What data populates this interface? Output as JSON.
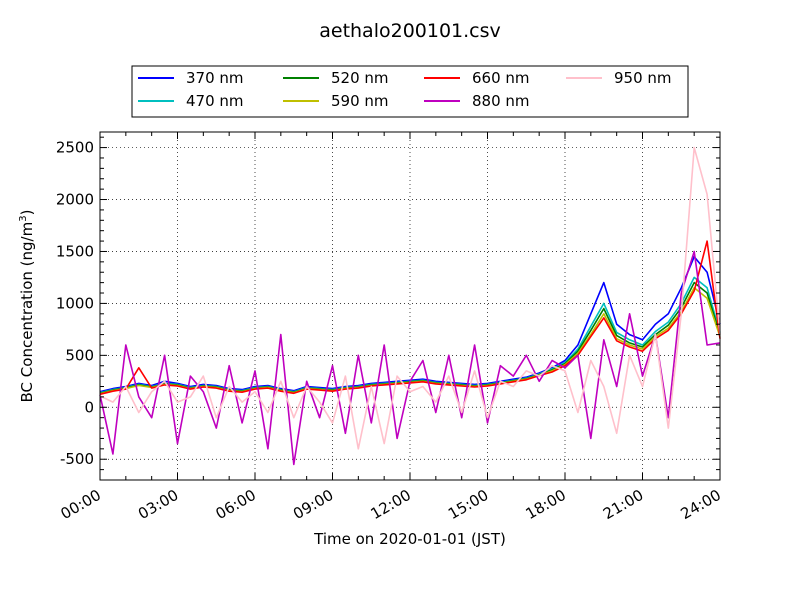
{
  "chart_data": {
    "type": "line",
    "title": "aethalo200101.csv",
    "xlabel": "Time on 2020-01-01 (JST)",
    "ylabel": "BC Concentration (ng/m",
    "ylabel_sup": "3",
    "ylabel_close": ")",
    "x_ticks": [
      "00:00",
      "03:00",
      "06:00",
      "09:00",
      "12:00",
      "15:00",
      "18:00",
      "21:00",
      "24:00"
    ],
    "y_ticks": [
      "-500",
      "0",
      "500",
      "1000",
      "1500",
      "2000",
      "2500"
    ],
    "xlim": [
      0,
      24
    ],
    "ylim": [
      -700,
      2650
    ],
    "grid": true,
    "legend_position": "top-center",
    "series": [
      {
        "name": "370 nm",
        "color": "#0000ff",
        "x": [
          0,
          0.5,
          1,
          1.5,
          2,
          2.5,
          3,
          3.5,
          4,
          4.5,
          5,
          5.5,
          6,
          6.5,
          7,
          7.5,
          8,
          8.5,
          9,
          9.5,
          10,
          10.5,
          11,
          11.5,
          12,
          12.5,
          13,
          13.5,
          14,
          14.5,
          15,
          15.5,
          16,
          16.5,
          17,
          17.5,
          18,
          18.5,
          19,
          19.5,
          20,
          20.5,
          21,
          21.5,
          22,
          22.5,
          23,
          23.5,
          24
        ],
        "y": [
          150,
          180,
          200,
          230,
          210,
          250,
          230,
          200,
          220,
          210,
          180,
          170,
          200,
          210,
          180,
          160,
          200,
          190,
          180,
          200,
          210,
          230,
          240,
          250,
          260,
          270,
          250,
          240,
          230,
          220,
          230,
          250,
          270,
          290,
          330,
          380,
          450,
          600,
          900,
          1200,
          800,
          700,
          650,
          800,
          900,
          1150,
          1450,
          1300,
          800
        ]
      },
      {
        "name": "470 nm",
        "color": "#00bfbf",
        "x": [
          0,
          0.5,
          1,
          1.5,
          2,
          2.5,
          3,
          3.5,
          4,
          4.5,
          5,
          5.5,
          6,
          6.5,
          7,
          7.5,
          8,
          8.5,
          9,
          9.5,
          10,
          10.5,
          11,
          11.5,
          12,
          12.5,
          13,
          13.5,
          14,
          14.5,
          15,
          15.5,
          16,
          16.5,
          17,
          17.5,
          18,
          18.5,
          19,
          19.5,
          20,
          20.5,
          21,
          21.5,
          22,
          22.5,
          23,
          23.5,
          24
        ],
        "y": [
          140,
          170,
          190,
          220,
          200,
          230,
          220,
          190,
          210,
          200,
          170,
          160,
          190,
          200,
          170,
          150,
          190,
          180,
          170,
          190,
          200,
          220,
          230,
          240,
          250,
          260,
          240,
          230,
          220,
          210,
          220,
          240,
          260,
          280,
          320,
          370,
          430,
          560,
          780,
          1000,
          720,
          650,
          600,
          730,
          820,
          1000,
          1250,
          1150,
          720
        ]
      },
      {
        "name": "520 nm",
        "color": "#008000",
        "x": [
          0,
          0.5,
          1,
          1.5,
          2,
          2.5,
          3,
          3.5,
          4,
          4.5,
          5,
          5.5,
          6,
          6.5,
          7,
          7.5,
          8,
          8.5,
          9,
          9.5,
          10,
          10.5,
          11,
          11.5,
          12,
          12.5,
          13,
          13.5,
          14,
          14.5,
          15,
          15.5,
          16,
          16.5,
          17,
          17.5,
          18,
          18.5,
          19,
          19.5,
          20,
          20.5,
          21,
          21.5,
          22,
          22.5,
          23,
          23.5,
          24
        ],
        "y": [
          135,
          165,
          185,
          215,
          195,
          225,
          215,
          185,
          205,
          195,
          165,
          155,
          185,
          195,
          165,
          145,
          185,
          175,
          165,
          185,
          195,
          215,
          225,
          235,
          245,
          255,
          235,
          225,
          215,
          205,
          215,
          235,
          255,
          275,
          315,
          360,
          420,
          540,
          740,
          950,
          690,
          620,
          580,
          700,
          790,
          960,
          1200,
          1100,
          700
        ]
      },
      {
        "name": "590 nm",
        "color": "#bfbf00",
        "x": [
          0,
          0.5,
          1,
          1.5,
          2,
          2.5,
          3,
          3.5,
          4,
          4.5,
          5,
          5.5,
          6,
          6.5,
          7,
          7.5,
          8,
          8.5,
          9,
          9.5,
          10,
          10.5,
          11,
          11.5,
          12,
          12.5,
          13,
          13.5,
          14,
          14.5,
          15,
          15.5,
          16,
          16.5,
          17,
          17.5,
          18,
          18.5,
          19,
          19.5,
          20,
          20.5,
          21,
          21.5,
          22,
          22.5,
          23,
          23.5,
          24
        ],
        "y": [
          130,
          160,
          180,
          210,
          190,
          220,
          210,
          180,
          200,
          190,
          160,
          150,
          180,
          190,
          160,
          140,
          180,
          170,
          160,
          180,
          190,
          210,
          220,
          230,
          240,
          250,
          230,
          220,
          210,
          200,
          210,
          230,
          250,
          270,
          310,
          350,
          410,
          520,
          700,
          900,
          660,
          600,
          560,
          680,
          760,
          920,
          1150,
          1050,
          680
        ]
      },
      {
        "name": "660 nm",
        "color": "#ff0000",
        "x": [
          0,
          0.5,
          1,
          1.5,
          2,
          2.5,
          3,
          3.5,
          4,
          4.5,
          5,
          5.5,
          6,
          6.5,
          7,
          7.5,
          8,
          8.5,
          9,
          9.5,
          10,
          10.5,
          11,
          11.5,
          12,
          12.5,
          13,
          13.5,
          14,
          14.5,
          15,
          15.5,
          16,
          16.5,
          17,
          17.5,
          18,
          18.5,
          19,
          19.5,
          20,
          20.5,
          21,
          21.5,
          22,
          22.5,
          23,
          23.5,
          24
        ],
        "y": [
          125,
          155,
          175,
          380,
          185,
          215,
          205,
          175,
          195,
          185,
          155,
          145,
          175,
          185,
          155,
          135,
          175,
          165,
          155,
          175,
          185,
          205,
          215,
          225,
          235,
          245,
          225,
          215,
          205,
          195,
          205,
          225,
          245,
          265,
          305,
          340,
          400,
          500,
          680,
          860,
          640,
          580,
          540,
          660,
          740,
          900,
          1120,
          1600,
          660
        ]
      },
      {
        "name": "880 nm",
        "color": "#bf00bf",
        "x": [
          0,
          0.5,
          1,
          1.5,
          2,
          2.5,
          3,
          3.5,
          4,
          4.5,
          5,
          5.5,
          6,
          6.5,
          7,
          7.5,
          8,
          8.5,
          9,
          9.5,
          10,
          10.5,
          11,
          11.5,
          12,
          12.5,
          13,
          13.5,
          14,
          14.5,
          15,
          15.5,
          16,
          16.5,
          17,
          17.5,
          18,
          18.5,
          19,
          19.5,
          20,
          20.5,
          21,
          21.5,
          22,
          22.5,
          23,
          23.5,
          24
        ],
        "y": [
          120,
          -450,
          600,
          100,
          -100,
          500,
          -350,
          300,
          150,
          -200,
          400,
          -150,
          350,
          -400,
          700,
          -550,
          250,
          -100,
          400,
          -250,
          500,
          -150,
          600,
          -300,
          250,
          450,
          -50,
          500,
          -100,
          600,
          -150,
          400,
          300,
          500,
          250,
          450,
          380,
          500,
          -300,
          650,
          200,
          900,
          300,
          700,
          -100,
          1100,
          1500,
          600,
          620
        ]
      },
      {
        "name": "950 nm",
        "color": "#ffc0cb",
        "x": [
          0,
          0.5,
          1,
          1.5,
          2,
          2.5,
          3,
          3.5,
          4,
          4.5,
          5,
          5.5,
          6,
          6.5,
          7,
          7.5,
          8,
          8.5,
          9,
          9.5,
          10,
          10.5,
          11,
          11.5,
          12,
          12.5,
          13,
          13.5,
          14,
          14.5,
          15,
          15.5,
          16,
          16.5,
          17,
          17.5,
          18,
          18.5,
          19,
          19.5,
          20,
          20.5,
          21,
          21.5,
          22,
          22.5,
          23,
          23.5,
          24
        ],
        "y": [
          110,
          50,
          200,
          -50,
          150,
          250,
          50,
          100,
          300,
          -100,
          200,
          50,
          150,
          -50,
          250,
          -100,
          200,
          50,
          -150,
          300,
          -400,
          200,
          -350,
          300,
          150,
          200,
          50,
          300,
          -50,
          350,
          -100,
          250,
          200,
          350,
          300,
          400,
          350,
          -50,
          450,
          200,
          -250,
          500,
          200,
          700,
          -200,
          900,
          2500,
          2050,
          700
        ]
      }
    ]
  }
}
